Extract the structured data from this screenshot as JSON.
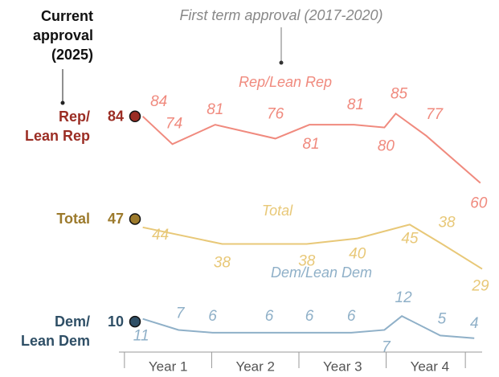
{
  "chart_data": {
    "type": "line",
    "title": "First term approval (2017-2020)",
    "current_label": "Current\napproval\n(2025)",
    "categories": [
      "Year 1",
      "Year 2",
      "Year 3",
      "Year 4"
    ],
    "xlim": [
      -0.1,
      4.1
    ],
    "ylim": [
      0,
      100
    ],
    "series": [
      {
        "name": "Rep/Lean Rep",
        "side_label": "Rep/\nLean Rep",
        "color": "#f08a7e",
        "dark_color": "#9b2d24",
        "current": 84,
        "x": [
          0.21,
          0.55,
          1.04,
          1.73,
          2.12,
          2.63,
          2.98,
          3.11,
          3.46,
          4.08
        ],
        "values": [
          84,
          74,
          81,
          76,
          81,
          81,
          80,
          85,
          77,
          60
        ]
      },
      {
        "name": "Total",
        "side_label": "Total",
        "color": "#e8c878",
        "dark_color": "#9c7a2c",
        "current": 47,
        "x": [
          0.21,
          1.12,
          2.09,
          2.67,
          3.27,
          3.64,
          4.1
        ],
        "values": [
          44,
          38,
          38,
          40,
          45,
          38,
          29
        ]
      },
      {
        "name": "Dem/Lean Dem",
        "side_label": "Dem/\nLean Dem",
        "color": "#8fb0c8",
        "dark_color": "#2f4f66",
        "current": 10,
        "x": [
          0.21,
          0.62,
          1.01,
          1.66,
          2.12,
          2.6,
          2.98,
          3.18,
          3.62,
          4.01
        ],
        "values": [
          11,
          7,
          6,
          6,
          6,
          6,
          7,
          12,
          5,
          4
        ]
      }
    ]
  }
}
